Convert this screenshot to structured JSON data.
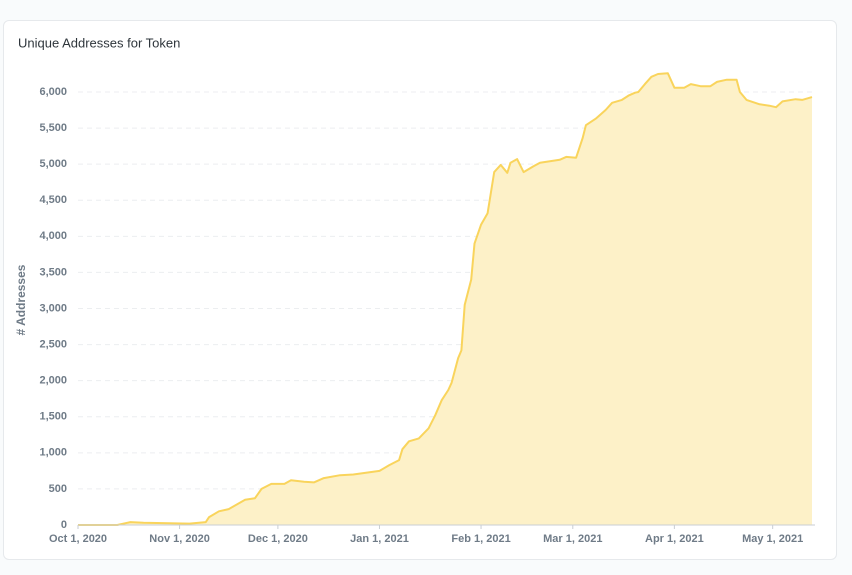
{
  "chart_data": {
    "type": "area",
    "title": "Unique Addresses for Token",
    "y_label": "# Addresses",
    "x": [
      "2020-10-01",
      "2020-10-13",
      "2020-10-17",
      "2020-10-21",
      "2020-11-04",
      "2020-11-09",
      "2020-11-10",
      "2020-11-13",
      "2020-11-16",
      "2020-11-21",
      "2020-11-24",
      "2020-11-26",
      "2020-11-29",
      "2020-12-03",
      "2020-12-05",
      "2020-12-09",
      "2020-12-12",
      "2020-12-15",
      "2020-12-20",
      "2020-12-24",
      "2020-12-29",
      "2021-01-01",
      "2021-01-04",
      "2021-01-07",
      "2021-01-08",
      "2021-01-10",
      "2021-01-13",
      "2021-01-16",
      "2021-01-18",
      "2021-01-20",
      "2021-01-22",
      "2021-01-23",
      "2021-01-25",
      "2021-01-26",
      "2021-01-27",
      "2021-01-29",
      "2021-01-30",
      "2021-02-01",
      "2021-02-03",
      "2021-02-05",
      "2021-02-07",
      "2021-02-09",
      "2021-02-10",
      "2021-02-12",
      "2021-02-14",
      "2021-02-17",
      "2021-02-19",
      "2021-02-22",
      "2021-02-25",
      "2021-02-27",
      "2021-03-02",
      "2021-03-04",
      "2021-03-05",
      "2021-03-08",
      "2021-03-11",
      "2021-03-13",
      "2021-03-16",
      "2021-03-18",
      "2021-03-20",
      "2021-03-21",
      "2021-03-23",
      "2021-03-25",
      "2021-03-27",
      "2021-03-30",
      "2021-04-01",
      "2021-04-04",
      "2021-04-06",
      "2021-04-09",
      "2021-04-12",
      "2021-04-14",
      "2021-04-17",
      "2021-04-20",
      "2021-04-21",
      "2021-04-23",
      "2021-04-27",
      "2021-04-30",
      "2021-05-02",
      "2021-05-04",
      "2021-05-08",
      "2021-05-10",
      "2021-05-13"
    ],
    "series": [
      {
        "name": "# Addresses",
        "color": "#f9d45c",
        "fill": "#fdf1c8",
        "values": [
          0,
          0,
          40,
          30,
          20,
          40,
          110,
          190,
          220,
          350,
          370,
          500,
          570,
          570,
          620,
          600,
          590,
          650,
          690,
          700,
          730,
          750,
          830,
          900,
          1050,
          1160,
          1200,
          1340,
          1520,
          1730,
          1870,
          1970,
          2310,
          2420,
          3050,
          3400,
          3900,
          4160,
          4320,
          4890,
          4990,
          4880,
          5020,
          5070,
          4890,
          4970,
          5020,
          5040,
          5060,
          5100,
          5090,
          5360,
          5540,
          5630,
          5750,
          5850,
          5890,
          5950,
          5990,
          6000,
          6110,
          6210,
          6250,
          6260,
          6060,
          6060,
          6110,
          6080,
          6080,
          6140,
          6170,
          6170,
          6000,
          5890,
          5830,
          5810,
          5790,
          5870,
          5900,
          5890,
          5930
        ]
      }
    ],
    "xlim": [
      "2020-10-01",
      "2021-05-13"
    ],
    "xticks": [
      {
        "value": "2020-10-01",
        "label": "Oct 1, 2020"
      },
      {
        "value": "2020-11-01",
        "label": "Nov 1, 2020"
      },
      {
        "value": "2020-12-01",
        "label": "Dec 1, 2020"
      },
      {
        "value": "2021-01-01",
        "label": "Jan 1, 2021"
      },
      {
        "value": "2021-02-01",
        "label": "Feb 1, 2021"
      },
      {
        "value": "2021-03-01",
        "label": "Mar 1, 2021"
      },
      {
        "value": "2021-04-01",
        "label": "Apr 1, 2021"
      },
      {
        "value": "2021-05-01",
        "label": "May 1, 2021"
      }
    ],
    "ylim": [
      0,
      6000
    ],
    "yticks": [
      0,
      {
        "value": 500,
        "label": "500"
      },
      {
        "value": 1000,
        "label": "1,000"
      },
      {
        "value": 1500,
        "label": "1,500"
      },
      {
        "value": 2000,
        "label": "2,000"
      },
      {
        "value": 2500,
        "label": "2,500"
      },
      {
        "value": 3000,
        "label": "3,000"
      },
      {
        "value": 3500,
        "label": "3,500"
      },
      {
        "value": 4000,
        "label": "4,000"
      },
      {
        "value": 4500,
        "label": "4,500"
      },
      {
        "value": 5000,
        "label": "5,000"
      },
      {
        "value": 5500,
        "label": "5,500"
      },
      {
        "value": 6000,
        "label": "6,000"
      }
    ],
    "grid": true
  }
}
